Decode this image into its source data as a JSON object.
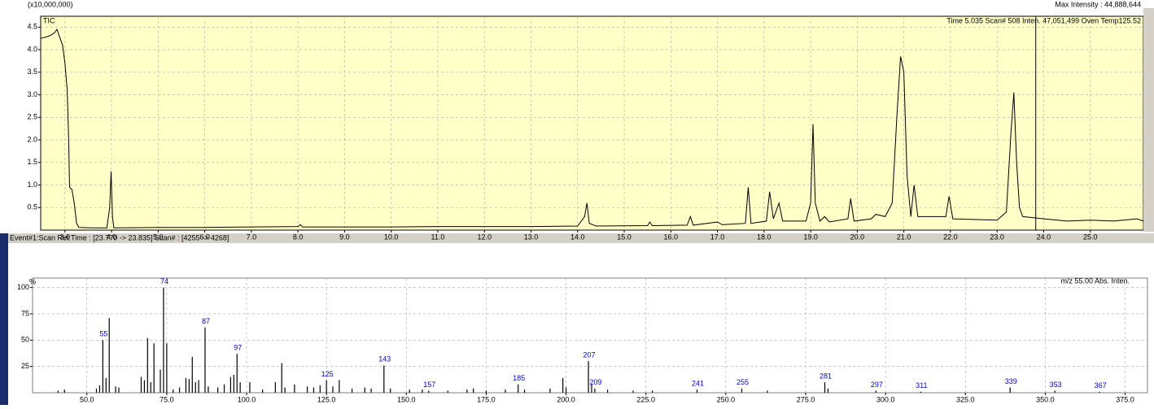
{
  "ui": {
    "scale_note": "(x10,000,000)",
    "max_intensity": "Max Intensity : 44,888,644",
    "trace_label": "TIC",
    "cursor_info": "Time   5.035   Scan#   508   Inten.     47,051,499   Oven Temp125.52",
    "event_info": "Event#1:Scan  Ret.Time : [23.770 -> 23.835]  Scan# : [4255 -> 4268]",
    "y_unit": "%",
    "mz_info": "m/z      55.00   Abs. Inten."
  },
  "chart_data": [
    {
      "type": "line",
      "color": "#000000",
      "grid": true,
      "cursor_x": 23.83,
      "x": [
        2.48,
        2.6,
        2.7,
        2.78,
        2.83,
        2.88,
        2.95,
        3.0,
        3.05,
        3.08,
        3.1,
        3.15,
        3.2,
        3.25,
        3.3,
        3.6,
        3.9,
        3.96,
        3.99,
        4.02,
        4.05,
        5.0,
        6.0,
        7.0,
        8.0,
        8.05,
        8.1,
        9.0,
        10.0,
        11.0,
        12.0,
        13.0,
        14.0,
        14.15,
        14.2,
        14.25,
        14.4,
        15.5,
        15.55,
        15.6,
        16.35,
        16.42,
        16.48,
        17.0,
        17.1,
        17.6,
        17.66,
        17.72,
        18.05,
        18.12,
        18.2,
        18.32,
        18.4,
        18.9,
        19.0,
        19.05,
        19.1,
        19.2,
        19.3,
        19.4,
        19.8,
        19.86,
        19.93,
        20.3,
        20.4,
        20.6,
        20.75,
        20.85,
        20.93,
        21.0,
        21.07,
        21.15,
        21.22,
        21.3,
        21.9,
        21.97,
        22.05,
        23.0,
        23.2,
        23.3,
        23.36,
        23.42,
        23.48,
        23.55,
        24.0,
        24.5,
        25.0,
        25.5,
        26.0,
        26.14
      ],
      "values": [
        4.25,
        4.28,
        4.32,
        4.38,
        4.45,
        4.3,
        4.1,
        3.7,
        3.1,
        2.0,
        0.95,
        0.9,
        0.6,
        0.15,
        0.06,
        0.05,
        0.05,
        0.5,
        1.3,
        0.3,
        0.05,
        0.06,
        0.06,
        0.07,
        0.08,
        0.12,
        0.07,
        0.07,
        0.07,
        0.08,
        0.08,
        0.08,
        0.09,
        0.3,
        0.6,
        0.15,
        0.09,
        0.1,
        0.18,
        0.1,
        0.11,
        0.3,
        0.11,
        0.18,
        0.12,
        0.15,
        0.95,
        0.15,
        0.2,
        0.85,
        0.25,
        0.6,
        0.2,
        0.2,
        0.6,
        2.35,
        0.6,
        0.2,
        0.3,
        0.18,
        0.25,
        0.7,
        0.2,
        0.25,
        0.35,
        0.3,
        0.6,
        2.5,
        3.85,
        3.5,
        1.2,
        0.3,
        1.0,
        0.3,
        0.3,
        0.75,
        0.25,
        0.22,
        0.4,
        2.2,
        3.05,
        1.5,
        0.5,
        0.3,
        0.25,
        0.2,
        0.22,
        0.2,
        0.25,
        0.2
      ],
      "xlim": [
        2.48,
        26.14
      ],
      "ylim": [
        0,
        4.74
      ],
      "xticks": [
        {
          "value": 3,
          "label": "3.0"
        },
        {
          "value": 4,
          "label": "4.0"
        },
        {
          "value": 5,
          "label": "5.0"
        },
        {
          "value": 6,
          "label": "6.0"
        },
        {
          "value": 7,
          "label": "7.0"
        },
        {
          "value": 8,
          "label": "8.0"
        },
        {
          "value": 9,
          "label": "9.0"
        },
        {
          "value": 10,
          "label": "10.0"
        },
        {
          "value": 11,
          "label": "11.0"
        },
        {
          "value": 12,
          "label": "12.0"
        },
        {
          "value": 13,
          "label": "13.0"
        },
        {
          "value": 14,
          "label": "14.0"
        },
        {
          "value": 15,
          "label": "15.0"
        },
        {
          "value": 16,
          "label": "16.0"
        },
        {
          "value": 17,
          "label": "17.0"
        },
        {
          "value": 18,
          "label": "18.0"
        },
        {
          "value": 19,
          "label": "19.0"
        },
        {
          "value": 20,
          "label": "20.0"
        },
        {
          "value": 21,
          "label": "21.0"
        },
        {
          "value": 22,
          "label": "22.0"
        },
        {
          "value": 23,
          "label": "23.0"
        },
        {
          "value": 24,
          "label": "24.0"
        },
        {
          "value": 25,
          "label": "25.0"
        }
      ],
      "yticks": [
        0.5,
        {
          "value": 1,
          "label": "1.0"
        },
        1.5,
        {
          "value": 2,
          "label": "2.0"
        },
        2.5,
        {
          "value": 3,
          "label": "3.0"
        },
        3.5,
        {
          "value": 4,
          "label": "4.0"
        },
        4.5
      ]
    },
    {
      "type": "bar",
      "color": "#000000",
      "label_color": "#0000cc",
      "grid": true,
      "x": [
        41,
        43,
        53,
        54,
        55,
        56,
        57,
        59,
        60,
        67,
        68,
        69,
        70,
        71,
        73,
        74,
        75,
        77,
        79,
        81,
        82,
        83,
        84,
        85,
        87,
        88,
        91,
        93,
        95,
        96,
        97,
        98,
        101,
        105,
        109,
        111,
        112,
        115,
        119,
        121,
        123,
        125,
        127,
        129,
        133,
        137,
        139,
        143,
        145,
        151,
        155,
        157,
        163,
        169,
        171,
        175,
        181,
        185,
        187,
        195,
        199,
        200,
        207,
        208,
        209,
        213,
        221,
        227,
        241,
        255,
        263,
        281,
        282,
        297,
        311,
        339,
        353,
        367
      ],
      "values": [
        2,
        3,
        4,
        7,
        50,
        14,
        71,
        6,
        5,
        15,
        12,
        52,
        10,
        47,
        22,
        100,
        47,
        3,
        5,
        14,
        13,
        34,
        10,
        12,
        62,
        6,
        5,
        8,
        15,
        17,
        37,
        10,
        10,
        3,
        10,
        28,
        5,
        8,
        6,
        5,
        7,
        12,
        6,
        12,
        4,
        5,
        4,
        26,
        4,
        3,
        3,
        2,
        2,
        3,
        4,
        2,
        3,
        8,
        3,
        4,
        14,
        5,
        30,
        8,
        4,
        3,
        2,
        2,
        3,
        4,
        2,
        10,
        4,
        2,
        1,
        5,
        2,
        1
      ],
      "peak_labels": [
        55,
        74,
        87,
        97,
        125,
        143,
        157,
        185,
        207,
        209,
        241,
        255,
        281,
        297,
        311,
        339,
        353,
        367
      ],
      "xlim": [
        33,
        382
      ],
      "ylim": [
        0,
        109
      ],
      "xticks": [
        {
          "value": 50,
          "label": "50.0"
        },
        {
          "value": 75,
          "label": "75.0"
        },
        {
          "value": 100,
          "label": "100.0"
        },
        {
          "value": 125,
          "label": "125.0"
        },
        {
          "value": 150,
          "label": "150.0"
        },
        {
          "value": 175,
          "label": "175.0"
        },
        {
          "value": 200,
          "label": "200.0"
        },
        {
          "value": 225,
          "label": "225.0"
        },
        {
          "value": 250,
          "label": "250.0"
        },
        {
          "value": 275,
          "label": "275.0"
        },
        {
          "value": 300,
          "label": "300.0"
        },
        {
          "value": 325,
          "label": "325.0"
        },
        {
          "value": 350,
          "label": "350.0"
        },
        {
          "value": 375,
          "label": "375.0"
        }
      ],
      "yticks": [
        25,
        50,
        75,
        100
      ]
    }
  ]
}
